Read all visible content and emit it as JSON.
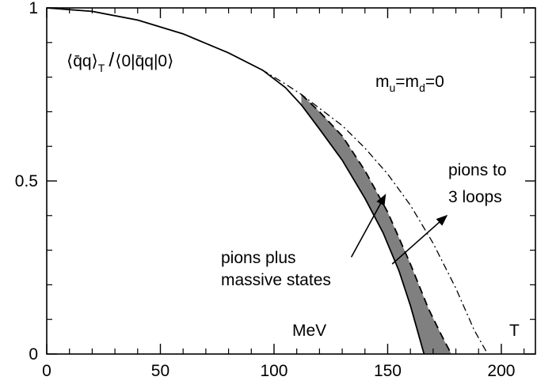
{
  "chart_data": {
    "type": "line",
    "title": "",
    "xlabel": "",
    "ylabel": "",
    "xlim": [
      0,
      215
    ],
    "ylim": [
      0,
      1
    ],
    "x_ticks": [
      0,
      50,
      100,
      150,
      200
    ],
    "x_tick_labels": [
      "0",
      "50",
      "100",
      "150",
      "200"
    ],
    "y_ticks": [
      0,
      0.5,
      1
    ],
    "y_tick_labels": [
      "0",
      "0.5",
      "1"
    ],
    "grid": false,
    "legend": "none",
    "y_quantity": {
      "numerator": "⟨q̄q⟩",
      "numerator_sub": "T",
      "slash": "/",
      "denominator": "⟨0|q̄q|0⟩"
    },
    "annotations": {
      "mass_condition": {
        "base": "m",
        "sub1": "u",
        "eq": "=m",
        "sub2": "d",
        "rest": "=0"
      },
      "unit_label": "MeV",
      "temperature_label": "T",
      "three_loops_label": [
        "pions to",
        "3 loops"
      ],
      "massive_states_label": [
        "pions plus",
        "massive states"
      ]
    },
    "series": [
      {
        "x": [
          0,
          20,
          40,
          60,
          80,
          95,
          105,
          112,
          120,
          130,
          140,
          150,
          160,
          170,
          180,
          188,
          194
        ],
        "values": [
          1.0,
          0.99,
          0.965,
          0.925,
          0.87,
          0.82,
          0.78,
          0.75,
          0.71,
          0.66,
          0.595,
          0.52,
          0.43,
          0.32,
          0.19,
          0.07,
          0.0
        ],
        "style": "dash-dot"
      },
      {
        "x": [
          0,
          20,
          40,
          60,
          80,
          95,
          105,
          112,
          120,
          130,
          140,
          148,
          155,
          160,
          166
        ],
        "values": [
          1.0,
          0.99,
          0.965,
          0.925,
          0.87,
          0.82,
          0.77,
          0.72,
          0.65,
          0.56,
          0.45,
          0.35,
          0.24,
          0.14,
          0.0
        ],
        "style": "solid"
      },
      {
        "x": [
          112,
          120,
          130,
          140,
          150,
          160,
          168,
          174,
          178
        ],
        "values": [
          0.75,
          0.7,
          0.63,
          0.53,
          0.41,
          0.26,
          0.13,
          0.05,
          0.0
        ],
        "style": "dashed"
      }
    ],
    "band": {
      "x_upper": [
        112,
        120,
        130,
        140,
        150,
        160,
        168,
        174,
        178
      ],
      "upper": [
        0.75,
        0.7,
        0.63,
        0.53,
        0.41,
        0.26,
        0.13,
        0.05,
        0.0
      ],
      "x_lower": [
        112,
        120,
        130,
        140,
        148,
        155,
        160,
        166
      ],
      "lower": [
        0.72,
        0.65,
        0.56,
        0.45,
        0.35,
        0.24,
        0.14,
        0.0
      ],
      "color": "#808080"
    },
    "arrows": [
      {
        "from": [
          152,
          0.26
        ],
        "to": [
          176,
          0.4
        ]
      },
      {
        "from": [
          134,
          0.28
        ],
        "to": [
          149,
          0.46
        ]
      }
    ],
    "colors": {
      "axis": "#000000",
      "line": "#000000",
      "band": "#808080"
    }
  }
}
